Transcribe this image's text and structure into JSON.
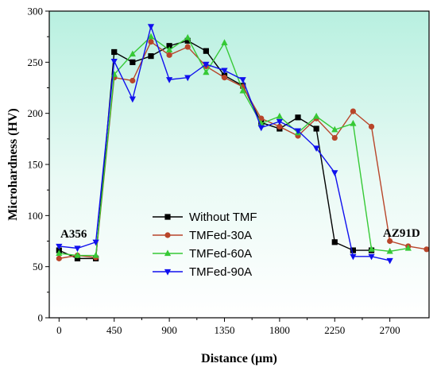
{
  "chart_data": {
    "type": "line",
    "title": "",
    "xlabel": "Distance (μm)",
    "ylabel": "Microhardness (HV)",
    "xlim": [
      -80,
      3020
    ],
    "ylim": [
      0,
      300
    ],
    "xticks": [
      0,
      450,
      900,
      1350,
      1800,
      2250,
      2700
    ],
    "yticks": [
      0,
      50,
      100,
      150,
      200,
      250,
      300
    ],
    "grid": false,
    "legend_position": "lower-left",
    "background": "gradient white to light teal",
    "annotations": [
      {
        "text": "A356",
        "x": 0,
        "y": 82
      },
      {
        "text": "AZ91D",
        "x": 2900,
        "y": 83
      }
    ],
    "series": [
      {
        "name": "Without TMF",
        "color": "#000000",
        "marker": "square",
        "x": [
          0,
          150,
          300,
          450,
          600,
          750,
          900,
          1050,
          1200,
          1350,
          1500,
          1650,
          1800,
          1950,
          2100,
          2250,
          2400,
          2550
        ],
        "y": [
          66,
          58,
          58,
          260,
          250,
          256,
          266,
          271,
          261,
          237,
          227,
          191,
          185,
          196,
          185,
          74,
          66,
          66
        ]
      },
      {
        "name": "TMFed-30A",
        "color": "#b8452a",
        "marker": "circle",
        "x": [
          0,
          150,
          300,
          450,
          600,
          750,
          900,
          1050,
          1200,
          1350,
          1500,
          1650,
          1800,
          1950,
          2100,
          2250,
          2400,
          2550,
          2700,
          2850,
          3000
        ],
        "y": [
          58,
          61,
          59,
          235,
          232,
          270,
          257,
          265,
          246,
          235,
          226,
          195,
          187,
          178,
          195,
          176,
          202,
          187,
          75,
          70,
          67
        ]
      },
      {
        "name": "TMFed-60A",
        "color": "#36c936",
        "marker": "triangle-up",
        "x": [
          0,
          150,
          300,
          450,
          600,
          750,
          900,
          1050,
          1200,
          1350,
          1500,
          1650,
          1800,
          1950,
          2100,
          2250,
          2400,
          2550,
          2700,
          2850
        ],
        "y": [
          63,
          61,
          61,
          238,
          258,
          275,
          262,
          274,
          240,
          269,
          222,
          190,
          197,
          181,
          197,
          184,
          190,
          67,
          65,
          68
        ]
      },
      {
        "name": "TMFed-90A",
        "color": "#1010ee",
        "marker": "triangle-down",
        "x": [
          0,
          150,
          300,
          450,
          600,
          750,
          900,
          1050,
          1200,
          1350,
          1500,
          1650,
          1800,
          1950,
          2100,
          2250,
          2400,
          2550,
          2700
        ],
        "y": [
          70,
          68,
          74,
          251,
          214,
          285,
          233,
          235,
          248,
          242,
          233,
          186,
          192,
          183,
          166,
          142,
          60,
          60,
          56
        ]
      }
    ]
  }
}
